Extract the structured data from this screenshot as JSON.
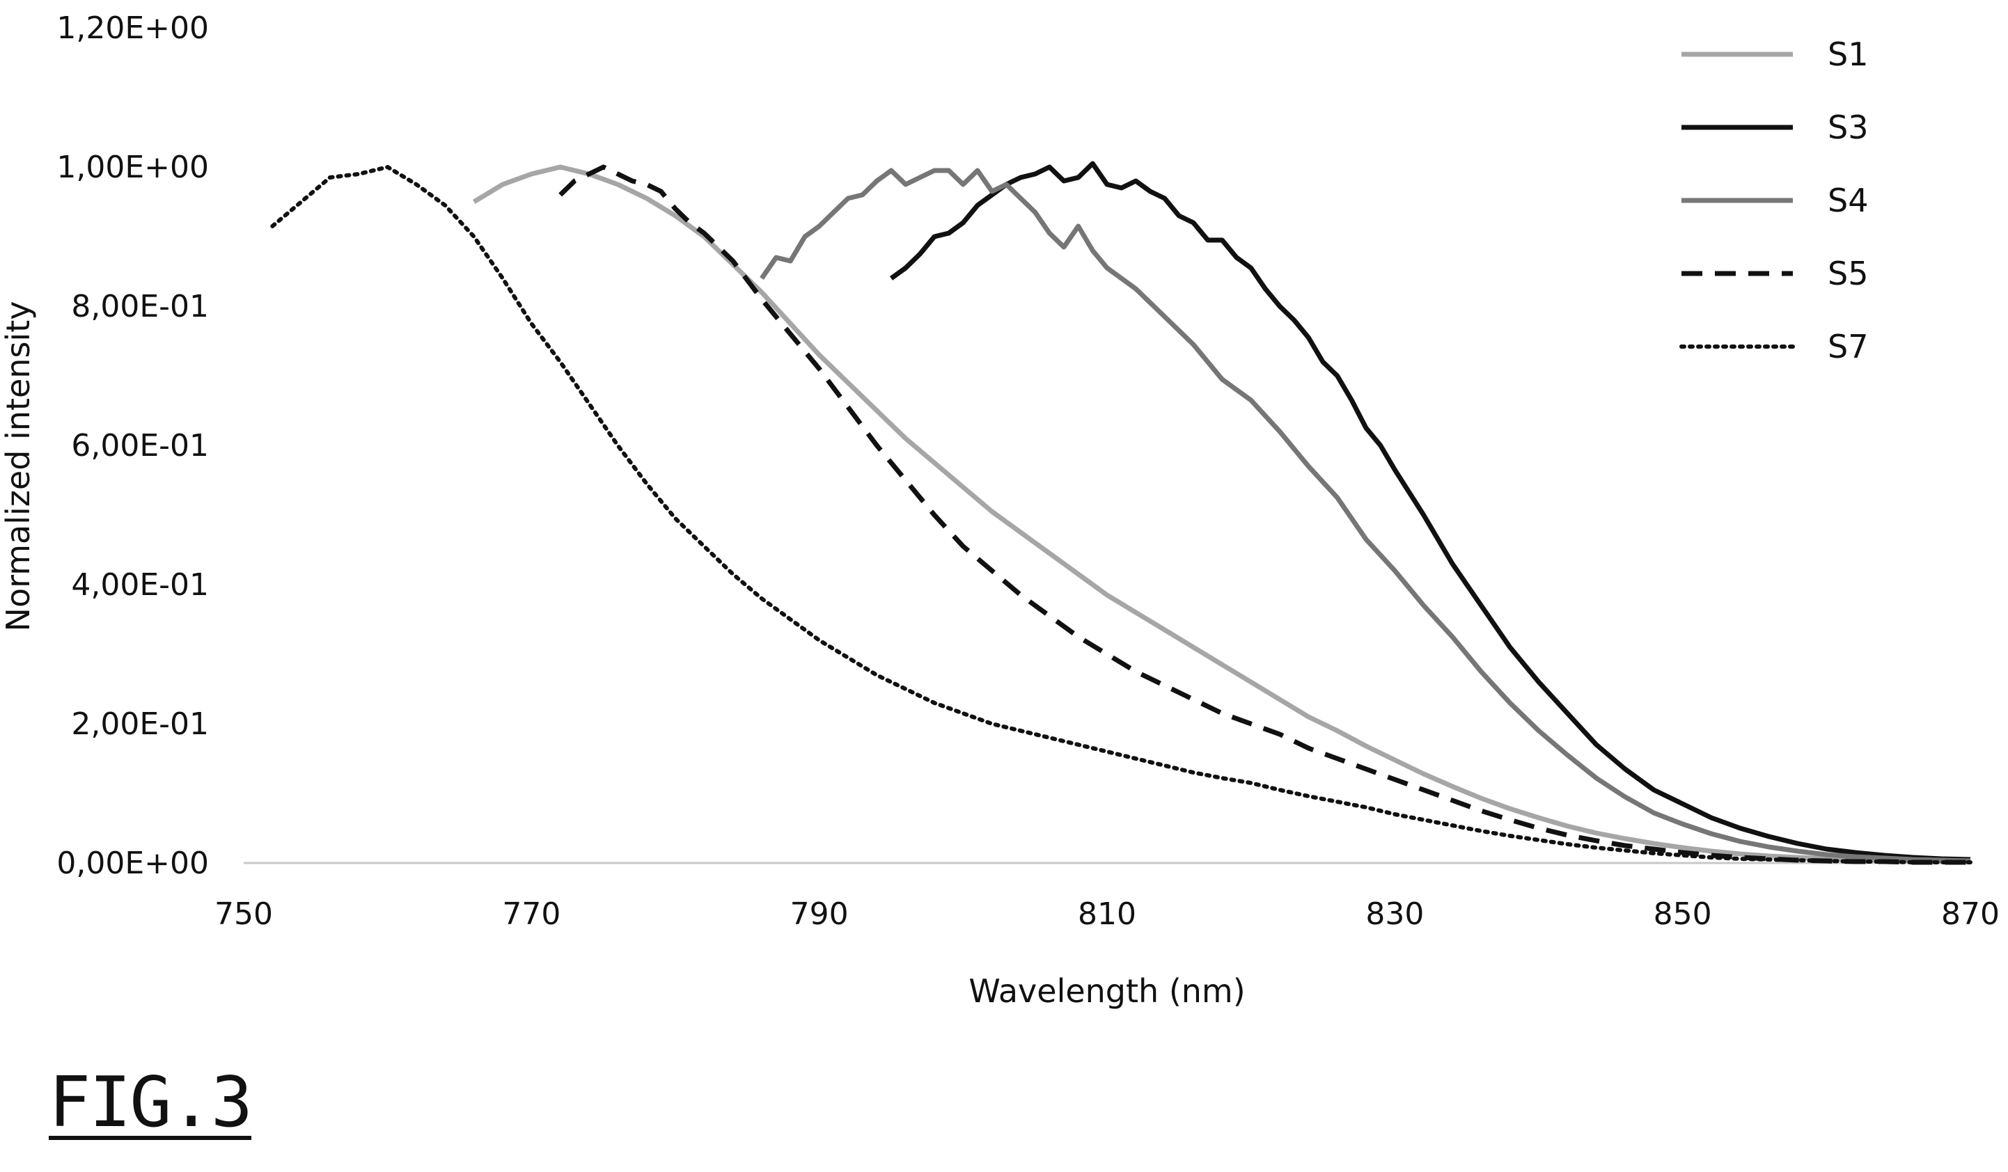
{
  "figure_label": "FIG.3",
  "chart_data": {
    "type": "line",
    "xlabel": "Wavelength (nm)",
    "ylabel": "Normalized intensity",
    "xlim": [
      750,
      870
    ],
    "ylim": [
      0,
      1.2
    ],
    "x_ticks": [
      750,
      770,
      790,
      810,
      830,
      850,
      870
    ],
    "x_tick_labels": [
      "750",
      "770",
      "790",
      "810",
      "830",
      "850",
      "870"
    ],
    "y_ticks": [
      0,
      0.2,
      0.4,
      0.6,
      0.8,
      1.0,
      1.2
    ],
    "y_tick_labels": [
      "0,00E+00",
      "2,00E-01",
      "4,00E-01",
      "6,00E-01",
      "8,00E-01",
      "1,00E+00",
      "1,20E+00"
    ],
    "grid": false,
    "legend_position": "top-right",
    "series": [
      {
        "name": "S1",
        "color": "#a6a6a6",
        "style": "solid",
        "x": [
          766,
          768,
          770,
          772,
          774,
          776,
          778,
          780,
          782,
          784,
          786,
          788,
          790,
          792,
          794,
          796,
          798,
          800,
          802,
          804,
          806,
          808,
          810,
          812,
          814,
          816,
          818,
          820,
          822,
          824,
          826,
          828,
          830,
          832,
          834,
          836,
          838,
          840,
          842,
          844,
          846,
          848,
          850,
          852,
          854,
          856,
          858,
          860,
          862,
          864,
          866,
          868,
          870
        ],
        "y": [
          0.95,
          0.975,
          0.99,
          1.0,
          0.99,
          0.975,
          0.955,
          0.93,
          0.9,
          0.86,
          0.82,
          0.775,
          0.73,
          0.69,
          0.65,
          0.61,
          0.575,
          0.54,
          0.505,
          0.475,
          0.445,
          0.415,
          0.385,
          0.36,
          0.335,
          0.31,
          0.285,
          0.26,
          0.235,
          0.21,
          0.19,
          0.168,
          0.148,
          0.128,
          0.11,
          0.093,
          0.078,
          0.065,
          0.053,
          0.043,
          0.035,
          0.028,
          0.022,
          0.017,
          0.013,
          0.01,
          0.008,
          0.006,
          0.005,
          0.004,
          0.003,
          0.002,
          0.002
        ]
      },
      {
        "name": "S3",
        "color": "#111111",
        "style": "solid",
        "x": [
          795,
          796,
          797,
          798,
          799,
          800,
          801,
          802,
          803,
          804,
          805,
          806,
          807,
          808,
          809,
          810,
          811,
          812,
          813,
          814,
          815,
          816,
          817,
          818,
          819,
          820,
          821,
          822,
          823,
          824,
          825,
          826,
          827,
          828,
          829,
          830,
          832,
          834,
          836,
          838,
          840,
          842,
          844,
          846,
          848,
          850,
          852,
          854,
          856,
          858,
          860,
          862,
          864,
          866,
          868,
          870
        ],
        "y": [
          0.84,
          0.855,
          0.875,
          0.9,
          0.905,
          0.92,
          0.945,
          0.96,
          0.975,
          0.985,
          0.99,
          1.0,
          0.98,
          0.985,
          1.005,
          0.975,
          0.97,
          0.98,
          0.965,
          0.955,
          0.93,
          0.92,
          0.895,
          0.895,
          0.87,
          0.855,
          0.825,
          0.8,
          0.78,
          0.755,
          0.72,
          0.7,
          0.665,
          0.625,
          0.6,
          0.565,
          0.5,
          0.43,
          0.37,
          0.31,
          0.26,
          0.215,
          0.17,
          0.135,
          0.105,
          0.085,
          0.065,
          0.05,
          0.038,
          0.028,
          0.02,
          0.015,
          0.011,
          0.008,
          0.006,
          0.005
        ]
      },
      {
        "name": "S4",
        "color": "#767676",
        "style": "solid",
        "x": [
          786,
          787,
          788,
          789,
          790,
          791,
          792,
          793,
          794,
          795,
          796,
          797,
          798,
          799,
          800,
          801,
          802,
          803,
          804,
          805,
          806,
          807,
          808,
          809,
          810,
          811,
          812,
          814,
          816,
          818,
          820,
          822,
          824,
          826,
          828,
          830,
          832,
          834,
          836,
          838,
          840,
          842,
          844,
          846,
          848,
          850,
          852,
          854,
          856,
          858,
          860,
          862,
          864,
          866,
          868,
          870
        ],
        "y": [
          0.84,
          0.87,
          0.865,
          0.9,
          0.915,
          0.935,
          0.955,
          0.96,
          0.98,
          0.995,
          0.975,
          0.985,
          0.995,
          0.995,
          0.975,
          0.995,
          0.965,
          0.975,
          0.955,
          0.935,
          0.905,
          0.885,
          0.915,
          0.88,
          0.855,
          0.84,
          0.825,
          0.785,
          0.745,
          0.695,
          0.665,
          0.62,
          0.57,
          0.525,
          0.465,
          0.42,
          0.37,
          0.325,
          0.275,
          0.23,
          0.19,
          0.155,
          0.122,
          0.095,
          0.072,
          0.056,
          0.042,
          0.031,
          0.023,
          0.017,
          0.012,
          0.009,
          0.007,
          0.005,
          0.004,
          0.003
        ]
      },
      {
        "name": "S5",
        "color": "#111111",
        "style": "dashed",
        "x": [
          772,
          773,
          774,
          775,
          776,
          777,
          778,
          779,
          780,
          781,
          782,
          784,
          786,
          788,
          790,
          792,
          794,
          796,
          798,
          800,
          802,
          804,
          806,
          808,
          810,
          812,
          814,
          816,
          818,
          820,
          822,
          824,
          826,
          828,
          830,
          832,
          834,
          836,
          838,
          840,
          842,
          844,
          846,
          848,
          850,
          852,
          854,
          856,
          858,
          860,
          862,
          864,
          866,
          868,
          870
        ],
        "y": [
          0.96,
          0.98,
          0.99,
          1.0,
          0.99,
          0.98,
          0.975,
          0.965,
          0.94,
          0.92,
          0.905,
          0.865,
          0.81,
          0.76,
          0.71,
          0.655,
          0.6,
          0.55,
          0.5,
          0.455,
          0.42,
          0.385,
          0.355,
          0.325,
          0.3,
          0.275,
          0.255,
          0.235,
          0.215,
          0.2,
          0.185,
          0.165,
          0.15,
          0.135,
          0.12,
          0.105,
          0.09,
          0.075,
          0.062,
          0.05,
          0.04,
          0.032,
          0.025,
          0.02,
          0.015,
          0.011,
          0.008,
          0.006,
          0.004,
          0.003,
          0.002,
          0.002,
          0.001,
          0.001,
          0.001
        ]
      },
      {
        "name": "S7",
        "color": "#111111",
        "style": "dotted",
        "x": [
          752,
          754,
          756,
          758,
          760,
          762,
          764,
          766,
          768,
          770,
          772,
          774,
          776,
          778,
          780,
          782,
          784,
          786,
          788,
          790,
          792,
          794,
          796,
          798,
          800,
          802,
          804,
          806,
          808,
          810,
          812,
          814,
          816,
          818,
          820,
          822,
          824,
          826,
          828,
          830,
          832,
          834,
          836,
          838,
          840,
          842,
          844,
          846,
          848,
          850,
          852,
          854,
          856,
          858,
          860,
          862,
          864,
          866,
          868,
          870
        ],
        "y": [
          0.915,
          0.95,
          0.985,
          0.99,
          1.0,
          0.975,
          0.945,
          0.9,
          0.84,
          0.775,
          0.72,
          0.66,
          0.6,
          0.545,
          0.495,
          0.455,
          0.415,
          0.38,
          0.35,
          0.32,
          0.295,
          0.27,
          0.25,
          0.23,
          0.215,
          0.2,
          0.19,
          0.18,
          0.17,
          0.16,
          0.15,
          0.14,
          0.13,
          0.122,
          0.115,
          0.105,
          0.096,
          0.088,
          0.08,
          0.07,
          0.062,
          0.054,
          0.046,
          0.039,
          0.033,
          0.027,
          0.022,
          0.018,
          0.014,
          0.011,
          0.008,
          0.006,
          0.005,
          0.004,
          0.003,
          0.002,
          0.002,
          0.001,
          0.001,
          0.001
        ]
      }
    ]
  }
}
